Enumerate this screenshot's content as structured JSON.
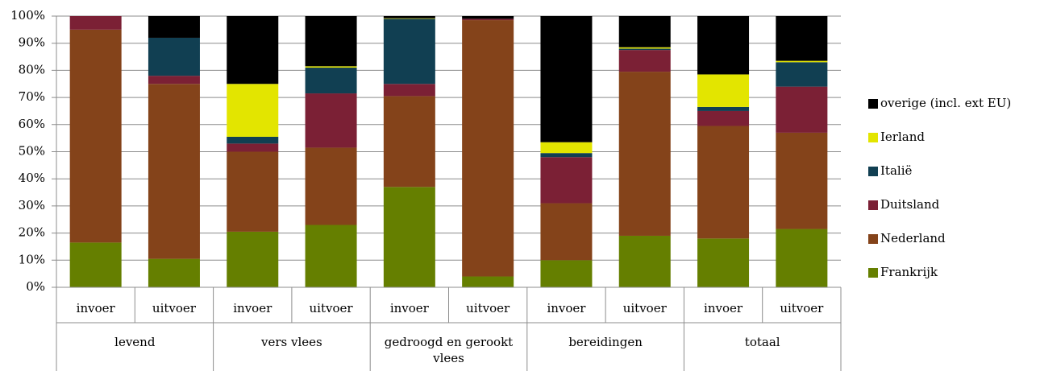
{
  "chart_data": {
    "type": "stacked_bar",
    "categories": [
      "invoer",
      "uitvoer",
      "invoer",
      "uitvoer",
      "invoer",
      "uitvoer",
      "invoer",
      "uitvoer",
      "invoer",
      "uitvoer"
    ],
    "groups": [
      "levend",
      "vers vlees",
      "gedroogd en gerookt vlees",
      "bereidingen",
      "totaal"
    ],
    "series": [
      {
        "name": "Frankrijk",
        "color": "#657f00",
        "values": [
          16.5,
          10.5,
          20.5,
          23,
          37,
          4,
          10,
          19,
          18,
          21.5
        ]
      },
      {
        "name": "Nederland",
        "color": "#84431a",
        "values": [
          78.5,
          64.5,
          29.5,
          28.5,
          33.5,
          94.5,
          21,
          60.5,
          41.5,
          35.5
        ]
      },
      {
        "name": "Duitsland",
        "color": "#7b2035",
        "values": [
          5,
          3,
          3,
          20,
          4.5,
          0.5,
          17,
          8,
          5.5,
          17
        ]
      },
      {
        "name": "Italië",
        "color": "#113f52",
        "values": [
          0,
          14,
          2.5,
          9.5,
          24,
          0,
          1.5,
          0.5,
          1.5,
          9
        ]
      },
      {
        "name": "Ierland",
        "color": "#e3e500",
        "values": [
          0,
          0,
          19.5,
          0.5,
          0.2,
          0,
          4,
          0.5,
          12,
          0.5
        ]
      },
      {
        "name": "overige (incl. ext EU)",
        "color": "#000000",
        "values": [
          0,
          8,
          25,
          18.5,
          0.8,
          1,
          46.5,
          11.5,
          21.5,
          16.5
        ]
      }
    ],
    "ylim": [
      0,
      100
    ],
    "yticks": [
      {
        "value": 0,
        "label": "0%"
      },
      {
        "value": 10,
        "label": "10%"
      },
      {
        "value": 20,
        "label": "20%"
      },
      {
        "value": 30,
        "label": "30%"
      },
      {
        "value": 40,
        "label": "40%"
      },
      {
        "value": 50,
        "label": "50%"
      },
      {
        "value": 60,
        "label": "60%"
      },
      {
        "value": 70,
        "label": "70%"
      },
      {
        "value": 80,
        "label": "80%"
      },
      {
        "value": 90,
        "label": "90%"
      },
      {
        "value": 100,
        "label": "100%"
      }
    ],
    "grid": true,
    "legend": "right"
  }
}
